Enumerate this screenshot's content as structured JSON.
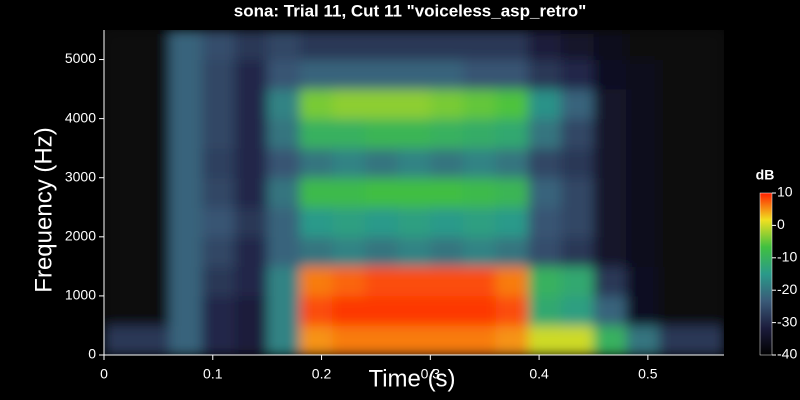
{
  "chart_data": {
    "type": "heatmap",
    "title": "sona: Trial 11, Cut 11 \"voiceless_asp_retro\"",
    "xlabel": "Time (s)",
    "ylabel": "Frequency (Hz)",
    "zlabel": "dB",
    "x_edges": [
      0,
      0.03,
      0.06,
      0.09,
      0.12,
      0.15,
      0.18,
      0.21,
      0.24,
      0.27,
      0.3,
      0.33,
      0.36,
      0.39,
      0.42,
      0.45,
      0.48,
      0.51,
      0.54,
      0.57
    ],
    "y_edges": [
      0,
      500,
      1000,
      1500,
      2000,
      2500,
      3000,
      3500,
      4000,
      4500,
      5000,
      5500
    ],
    "z": [
      [
        -28,
        -28,
        -22,
        -30,
        -32,
        -18,
        5,
        6,
        6,
        6,
        6,
        6,
        5,
        0,
        0,
        -10,
        -20,
        -28,
        -28
      ],
      [
        -38,
        -38,
        -22,
        -30,
        -32,
        -18,
        8,
        9,
        9,
        9,
        9,
        9,
        8,
        -12,
        -14,
        -22,
        -35,
        -38,
        -38
      ],
      [
        -38,
        -38,
        -22,
        -28,
        -30,
        -18,
        6,
        7,
        8,
        8,
        8,
        8,
        6,
        -10,
        -12,
        -28,
        -35,
        -38,
        -38
      ],
      [
        -38,
        -38,
        -22,
        -26,
        -30,
        -22,
        -20,
        -18,
        -20,
        -18,
        -20,
        -18,
        -20,
        -25,
        -28,
        -34,
        -36,
        -38,
        -38
      ],
      [
        -38,
        -38,
        -22,
        -24,
        -28,
        -22,
        -15,
        -14,
        -15,
        -14,
        -15,
        -14,
        -15,
        -24,
        -26,
        -34,
        -36,
        -38,
        -38
      ],
      [
        -38,
        -38,
        -22,
        -26,
        -30,
        -20,
        -8,
        -8,
        -7,
        -7,
        -7,
        -8,
        -9,
        -22,
        -26,
        -34,
        -36,
        -38,
        -38
      ],
      [
        -38,
        -38,
        -22,
        -27,
        -30,
        -24,
        -20,
        -18,
        -20,
        -18,
        -20,
        -18,
        -20,
        -26,
        -28,
        -34,
        -36,
        -38,
        -38
      ],
      [
        -38,
        -38,
        -22,
        -26,
        -30,
        -20,
        -10,
        -10,
        -9,
        -9,
        -10,
        -11,
        -12,
        -20,
        -26,
        -34,
        -36,
        -38,
        -38
      ],
      [
        -38,
        -38,
        -22,
        -26,
        -30,
        -18,
        -4,
        -3,
        -3,
        -3,
        -4,
        -5,
        -6,
        -16,
        -22,
        -34,
        -36,
        -38,
        -38
      ],
      [
        -38,
        -38,
        -22,
        -26,
        -30,
        -24,
        -22,
        -22,
        -22,
        -22,
        -22,
        -24,
        -24,
        -28,
        -30,
        -35,
        -36,
        -38,
        -38
      ],
      [
        -38,
        -38,
        -22,
        -25,
        -28,
        -26,
        -28,
        -28,
        -28,
        -28,
        -28,
        -28,
        -28,
        -32,
        -34,
        -36,
        -38,
        -38,
        -38
      ]
    ],
    "colors": [
      "#000000",
      "#1c1c3c",
      "#3a5a78",
      "#2a9a8a",
      "#40c040",
      "#f0e020",
      "#ff2000"
    ],
    "xlim": [
      0,
      0.57
    ],
    "xticks": [
      0,
      0.1,
      0.2,
      0.3,
      0.4,
      0.5
    ],
    "ylim": [
      0,
      5500
    ],
    "yticks": [
      0,
      1000,
      2000,
      3000,
      4000,
      5000
    ],
    "zlim": [
      -40,
      10
    ],
    "zticks": [
      -40,
      -30,
      -20,
      -10,
      0,
      10
    ]
  }
}
